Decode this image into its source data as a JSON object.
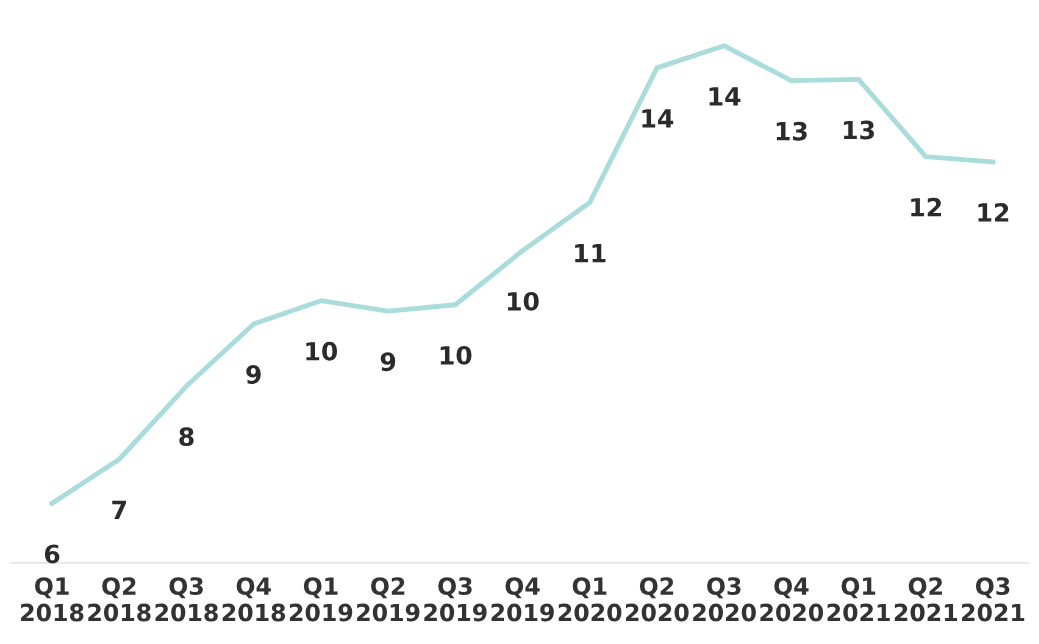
{
  "chart_data": {
    "type": "line",
    "categories": [
      "Q1\n2018",
      "Q2\n2018",
      "Q3\n2018",
      "Q4\n2018",
      "Q1\n2019",
      "Q2\n2019",
      "Q3\n2019",
      "Q4\n2019",
      "Q1\n2020",
      "Q2\n2020",
      "Q3\n2020",
      "Q4\n2020",
      "Q1\n2021",
      "Q2\n2021",
      "Q3\n2021"
    ],
    "series": [
      {
        "color": "#abdcdc",
        "values": [
          6.1,
          6.86,
          8.12,
          9.19,
          9.59,
          9.41,
          9.52,
          10.45,
          11.28,
          13.6,
          13.98,
          13.38,
          13.4,
          12.07,
          11.98
        ],
        "value_labels": [
          "6",
          "7",
          "8",
          "9",
          "10",
          "9",
          "10",
          "10",
          "11",
          "14",
          "14",
          "13",
          "13",
          "12",
          "12"
        ]
      }
    ],
    "marker": "none",
    "line_style": "solid",
    "grid": false,
    "legend": false,
    "tick_labels": "x"
  }
}
